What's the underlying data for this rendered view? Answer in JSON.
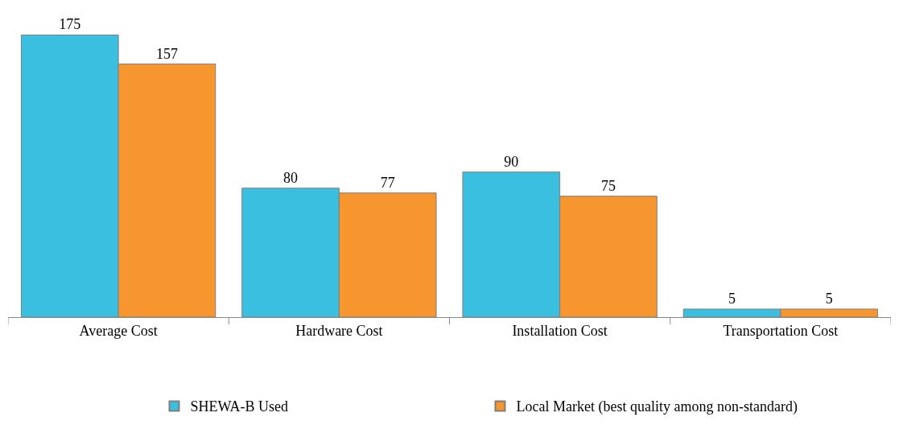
{
  "chart_data": {
    "type": "bar",
    "categories": [
      "Average Cost",
      "Hardware Cost",
      "Installation Cost",
      "Transportation Cost"
    ],
    "series": [
      {
        "name": "SHEWA-B Used",
        "color": "#3bbfe0",
        "values": [
          175,
          80,
          90,
          5
        ]
      },
      {
        "name": "Local Market (best quality among non-standard)",
        "color": "#f7952e",
        "values": [
          157,
          77,
          75,
          5
        ]
      }
    ],
    "data_labels": true,
    "legend": "bottom"
  }
}
